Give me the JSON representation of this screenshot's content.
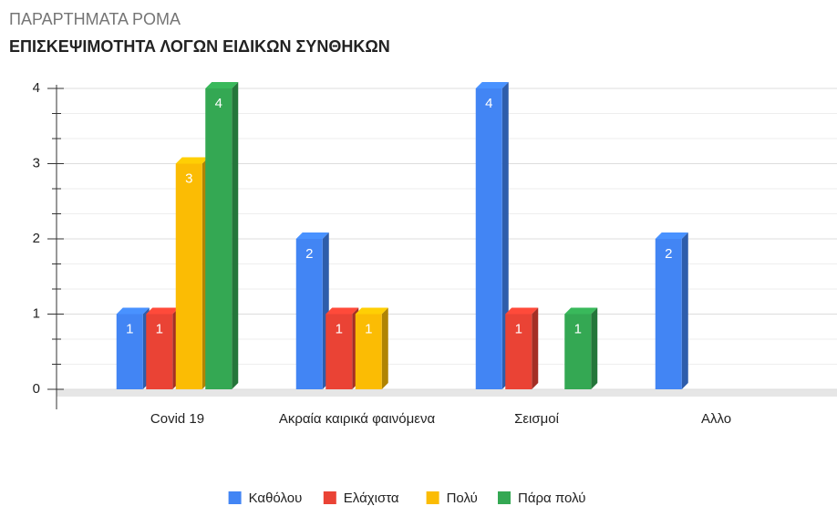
{
  "chart_data": {
    "type": "bar3d",
    "title": "ΠΑΡΑΡΤΗΜΑΤΑ ΡΟΜΑ",
    "subtitle": "ΕΠΙΣΚΕΨΙΜΟΤΗΤΑ ΛΟΓΩΝ ΕΙΔΙΚΩΝ ΣΥΝΘΗΚΩΝ",
    "categories": [
      "Covid 19",
      "Ακραία καιρικά φαινόμενα",
      "Σεισμοί",
      "Αλλο"
    ],
    "series": [
      {
        "name": "Καθόλου",
        "color": "#4285f4",
        "values": [
          1,
          2,
          4,
          2
        ]
      },
      {
        "name": "Ελάχιστα",
        "color": "#ea4335",
        "values": [
          1,
          1,
          1,
          null
        ]
      },
      {
        "name": "Πολύ",
        "color": "#fbbc04",
        "values": [
          3,
          1,
          null,
          null
        ]
      },
      {
        "name": "Πάρα πολύ",
        "color": "#34a853",
        "values": [
          4,
          null,
          1,
          null
        ]
      }
    ],
    "ylim": [
      0,
      4
    ],
    "yticks": [
      0,
      1,
      2,
      3,
      4
    ],
    "grid": true,
    "legend": "bottom"
  }
}
